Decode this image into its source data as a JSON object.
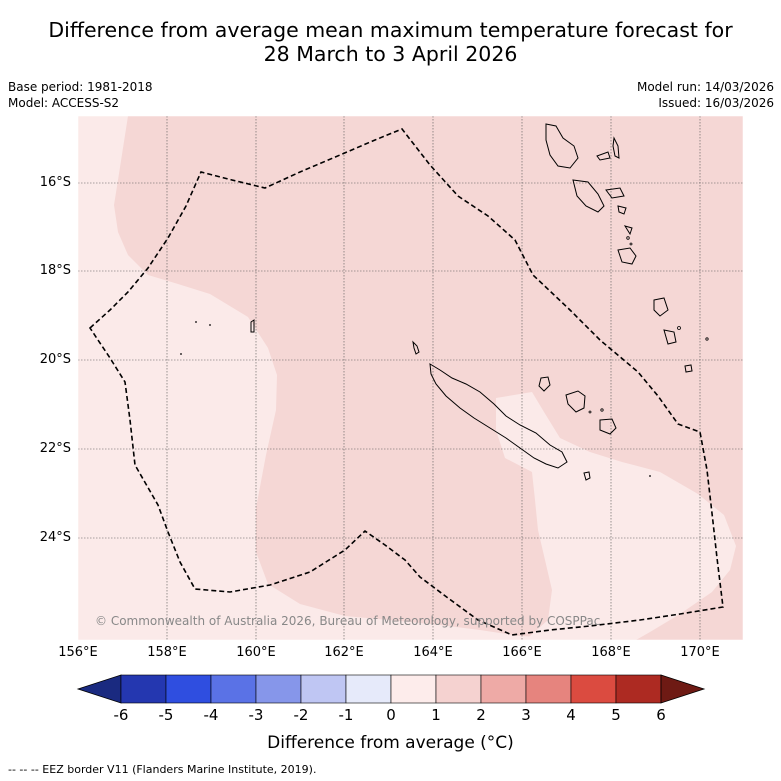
{
  "title": {
    "line1": "Difference from average mean maximum temperature forecast for",
    "line2": "28 March to 3 April 2026"
  },
  "meta": {
    "base_period": "Base period: 1981-2018",
    "model": "Model: ACCESS-S2",
    "model_run": "Model run: 14/03/2026",
    "issued": "Issued: 16/03/2026"
  },
  "map": {
    "latitude_labels": [
      "16°S",
      "18°S",
      "20°S",
      "22°S",
      "24°S"
    ],
    "longitude_labels": [
      "156°E",
      "158°E",
      "160°E",
      "162°E",
      "164°E",
      "166°E",
      "168°E",
      "170°E"
    ],
    "copyright": "© Commonwealth of Australia 2026, Bureau of Meteorology, supported by COSPPac",
    "colors": {
      "band_0_1": "#fbeae9",
      "band_1_2": "#f5d7d5",
      "eez_line": "#000000"
    }
  },
  "colorbar": {
    "tick_labels": [
      "-6",
      "-5",
      "-4",
      "-3",
      "-2",
      "-1",
      "0",
      "1",
      "2",
      "3",
      "4",
      "5",
      "6"
    ],
    "colors": [
      "#1a2a80",
      "#2437b0",
      "#2f4ee0",
      "#5a72e6",
      "#8696ea",
      "#bfc6f3",
      "#e6eafa",
      "#fdeceb",
      "#f5d2d0",
      "#eeaaa6",
      "#e6847e",
      "#db4b40",
      "#ad2a22",
      "#6e1a14"
    ],
    "title": "Difference from average (°C)"
  },
  "footnote": "--  --  -- EEZ border V11 (Flanders Marine Institute, 2019)."
}
